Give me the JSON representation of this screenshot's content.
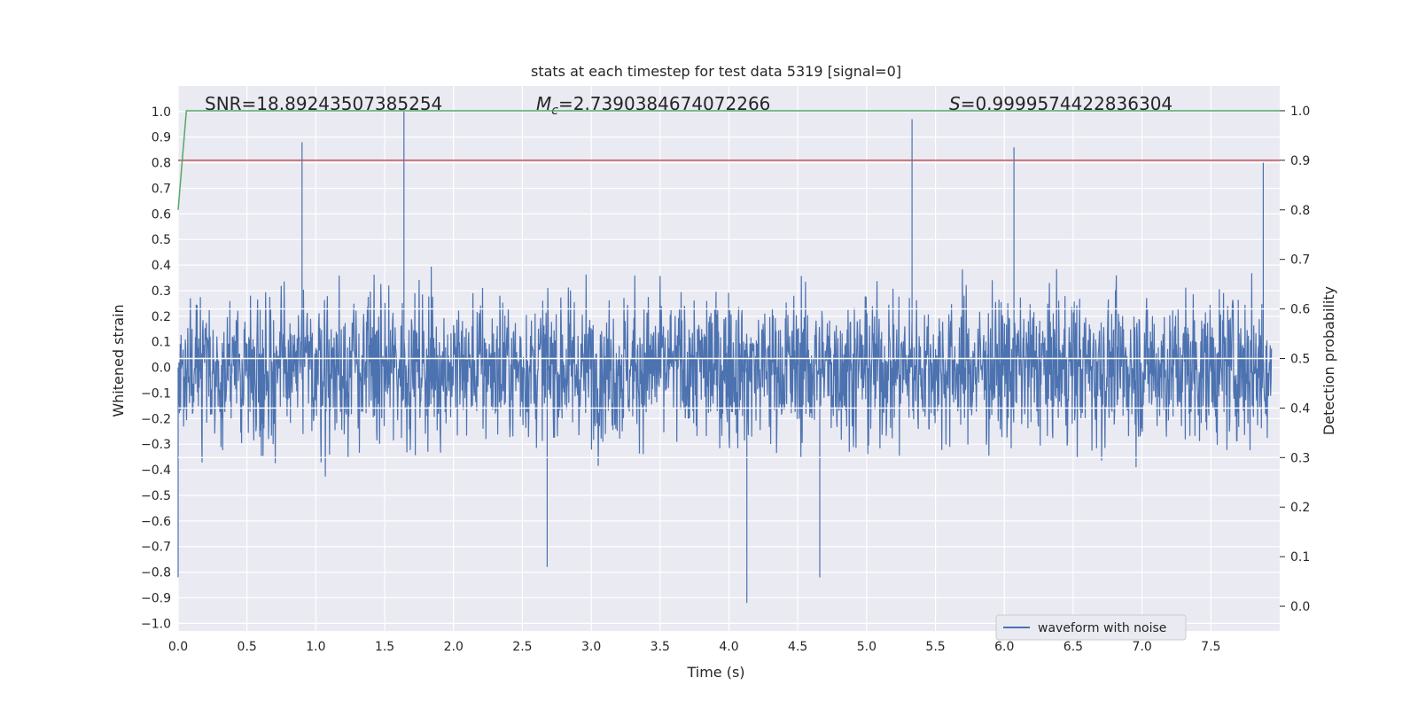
{
  "chart_data": {
    "type": "line",
    "title": "stats at each timestep for test data 5319 [signal=0]",
    "xlabel": "Time (s)",
    "ylabel": "Whitened strain",
    "y2label": "Detection probability",
    "xlim": [
      0.0,
      8.0
    ],
    "ylim": [
      -1.03,
      1.1
    ],
    "y2lim": [
      -0.05,
      1.05
    ],
    "x_ticks": [
      0.0,
      0.5,
      1.0,
      1.5,
      2.0,
      2.5,
      3.0,
      3.5,
      4.0,
      4.5,
      5.0,
      5.5,
      6.0,
      6.5,
      7.0,
      7.5
    ],
    "x_tick_labels": [
      "0.0",
      "0.5",
      "1.0",
      "1.5",
      "2.0",
      "2.5",
      "3.0",
      "3.5",
      "4.0",
      "4.5",
      "5.0",
      "5.5",
      "6.0",
      "6.5",
      "7.0",
      "7.5"
    ],
    "y_ticks": [
      -1.0,
      -0.9,
      -0.8,
      -0.7,
      -0.6,
      -0.5,
      -0.4,
      -0.3,
      -0.2,
      -0.1,
      0.0,
      0.1,
      0.2,
      0.3,
      0.4,
      0.5,
      0.6,
      0.7,
      0.8,
      0.9,
      1.0
    ],
    "y_tick_labels": [
      "−1.0",
      "−0.9",
      "−0.8",
      "−0.7",
      "−0.6",
      "−0.5",
      "−0.4",
      "−0.3",
      "−0.2",
      "−0.1",
      "0.0",
      "0.1",
      "0.2",
      "0.3",
      "0.4",
      "0.5",
      "0.6",
      "0.7",
      "0.8",
      "0.9",
      "1.0"
    ],
    "y2_ticks": [
      0.0,
      0.1,
      0.2,
      0.3,
      0.4,
      0.5,
      0.6,
      0.7,
      0.8,
      0.9,
      1.0
    ],
    "y2_tick_labels": [
      "0.0",
      "0.1",
      "0.2",
      "0.3",
      "0.4",
      "0.5",
      "0.6",
      "0.7",
      "0.8",
      "0.9",
      "1.0"
    ],
    "annotations": {
      "snr": "SNR=18.89243507385254",
      "mc_symbol": "M",
      "mc_sub": "c",
      "mc_value": "=2.7390384674072266",
      "s_symbol": "S",
      "s_value": "=0.9999574422836304"
    },
    "legend": {
      "label": "waveform with noise",
      "position": "lower-right"
    },
    "series": [
      {
        "name": "waveform with noise",
        "axis": "left",
        "color": "#4c72b0",
        "style": "dense noise, roughly symmetric about 0",
        "envelope": {
          "min": -0.92,
          "max": 1.0
        },
        "notable_peaks": [
          {
            "x": 0.9,
            "y": 0.88
          },
          {
            "x": 1.64,
            "y": 1.0
          },
          {
            "x": 5.33,
            "y": 0.97
          },
          {
            "x": 6.07,
            "y": 0.86
          },
          {
            "x": 7.88,
            "y": 0.8
          },
          {
            "x": 4.13,
            "y": -0.92
          },
          {
            "x": 4.66,
            "y": -0.82
          },
          {
            "x": 2.68,
            "y": -0.78
          },
          {
            "x": 0.0,
            "y": -0.82
          }
        ]
      },
      {
        "name": "detection probability",
        "axis": "right",
        "color": "#55a868",
        "x": [
          0.0,
          0.06,
          8.0
        ],
        "values": [
          0.8,
          1.0,
          1.0
        ]
      },
      {
        "name": "threshold",
        "axis": "right",
        "color": "#c44e52",
        "x": [
          0.0,
          8.0
        ],
        "values": [
          0.9,
          0.9
        ]
      }
    ],
    "colors": {
      "plot_background": "#eaeaf2",
      "grid": "#ffffff",
      "text": "#262626"
    }
  }
}
